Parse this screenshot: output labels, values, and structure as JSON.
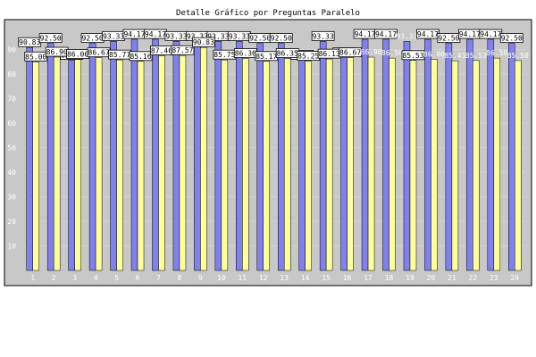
{
  "chart_data": {
    "type": "bar",
    "title": "Detalle Gráfico por Preguntas Paralelo",
    "xlabel": "",
    "ylabel": "",
    "ylim": [
      0,
      100
    ],
    "yticks": [
      10,
      20,
      30,
      40,
      50,
      60,
      70,
      80,
      90
    ],
    "grid": true,
    "categories": [
      "1",
      "2",
      "3",
      "4",
      "5",
      "6",
      "7",
      "8",
      "9",
      "10",
      "11",
      "12",
      "13",
      "14",
      "15",
      "16",
      "17",
      "18",
      "19",
      "20",
      "21",
      "22",
      "23",
      "24"
    ],
    "series": [
      {
        "color": "#8080f0",
        "values": [
          90.83,
          92.5,
          85.67,
          92.5,
          93.33,
          94.17,
          94.17,
          93.33,
          93.33,
          93.33,
          93.33,
          92.5,
          92.5,
          85.67,
          93.33,
          86.67,
          94.17,
          94.17,
          93.33,
          94.17,
          92.5,
          94.17,
          94.17,
          92.5
        ]
      },
      {
        "color": "#ffff99",
        "values": [
          85.0,
          86.9,
          86.0,
          86.67,
          85.77,
          85.16,
          87.46,
          87.57,
          90.83,
          85.75,
          86.36,
          85.17,
          86.35,
          85.25,
          86.13,
          86.67,
          86.9,
          86.5,
          85.53,
          86.0,
          85.41,
          85.53,
          86.5,
          85.5
        ]
      }
    ],
    "boxed_labels": {
      "s0": [
        true,
        true,
        true,
        true,
        true,
        true,
        true,
        true,
        true,
        true,
        true,
        true,
        true,
        true,
        true,
        true,
        true,
        true,
        false,
        true,
        true,
        true,
        true,
        true
      ],
      "s1": [
        true,
        true,
        true,
        true,
        true,
        true,
        true,
        true,
        true,
        true,
        true,
        true,
        true,
        true,
        true,
        true,
        false,
        false,
        true,
        false,
        false,
        false,
        false,
        false
      ]
    },
    "colors": {
      "plot_bg": "#c8c8c8",
      "frame": "#000000",
      "grid": "#e0e0e0",
      "bar_outline": "#000000"
    }
  }
}
